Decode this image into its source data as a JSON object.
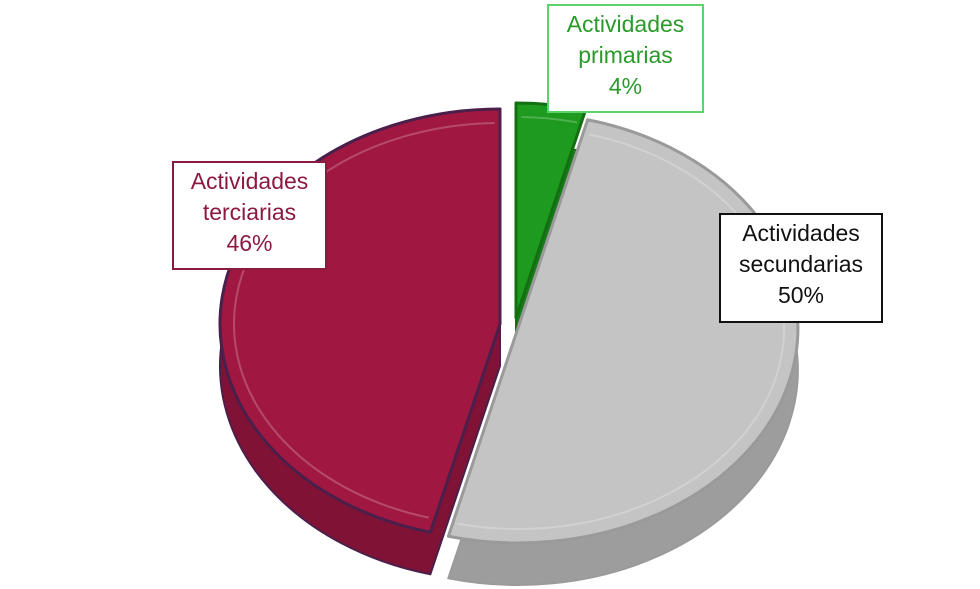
{
  "chart_data": {
    "type": "pie",
    "style": "3d-exploded",
    "legend": "none",
    "slices": [
      {
        "label_lines": [
          "Actividades",
          "primarias"
        ],
        "value_label": "4%",
        "value": 4,
        "color": "#1e9a1e"
      },
      {
        "label_lines": [
          "Actividades",
          "secundarias"
        ],
        "value_label": "50%",
        "value": 50,
        "color": "#c4c4c4"
      },
      {
        "label_lines": [
          "Actividades",
          "terciarias"
        ],
        "value_label": "46%",
        "value": 46,
        "color": "#a01842"
      }
    ]
  }
}
